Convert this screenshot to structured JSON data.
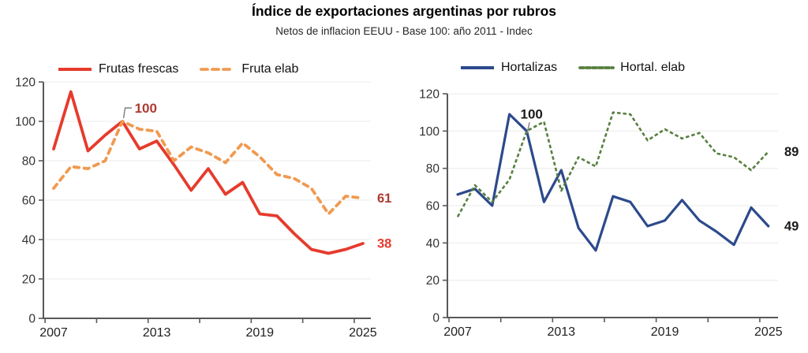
{
  "header": {
    "title": "Índice de exportaciones argentinas por rubros",
    "subtitle": "Netos de inflacion EEUU - Base 100: año 2011 - Indec"
  },
  "axis_style": {
    "axis_color": "#595959",
    "grid_color": "#efefef",
    "tick_label_color": "#333333",
    "x_label_color": "#1f1f1f"
  },
  "chart_data": [
    {
      "type": "line",
      "panel": "frutas",
      "x": [
        2007,
        2008,
        2009,
        2010,
        2011,
        2012,
        2013,
        2014,
        2015,
        2016,
        2017,
        2018,
        2019,
        2020,
        2021,
        2022,
        2023,
        2024,
        2025
      ],
      "x_tick_labels": [
        "2007",
        "2013",
        "2019",
        "2025"
      ],
      "x_tick_years": [
        2007,
        2013,
        2019,
        2025
      ],
      "ylim": [
        0,
        120
      ],
      "y_ticks": [
        0,
        20,
        40,
        60,
        80,
        100,
        120
      ],
      "grid": true,
      "legend_position": "top",
      "series": [
        {
          "name": "Frutas frescas",
          "style": "solid",
          "color": "#e63b2c",
          "values": [
            86,
            115,
            85,
            93,
            100,
            86,
            90,
            78,
            65,
            76,
            63,
            69,
            53,
            52,
            43,
            35,
            33,
            35,
            38
          ]
        },
        {
          "name": "Fruta elab",
          "style": "dashed",
          "color": "#f09a50",
          "values": [
            66,
            77,
            76,
            80,
            100,
            96,
            95,
            80,
            87,
            84,
            79,
            89,
            82,
            73,
            71,
            66,
            53,
            62,
            61
          ]
        }
      ],
      "annotations": {
        "peak": {
          "text": "100",
          "year": 2011,
          "value": 100,
          "variant": "elbow",
          "color": "#ae3b33",
          "leader_color": "#7f7f7f"
        },
        "end_labels": [
          {
            "text": "61",
            "value": 61,
            "color": "#ae3b33"
          },
          {
            "text": "38",
            "value": 38,
            "color": "#e63b2c"
          }
        ]
      }
    },
    {
      "type": "line",
      "panel": "hortalizas",
      "x": [
        2007,
        2008,
        2009,
        2010,
        2011,
        2012,
        2013,
        2014,
        2015,
        2016,
        2017,
        2018,
        2019,
        2020,
        2021,
        2022,
        2023,
        2024,
        2025
      ],
      "x_tick_labels": [
        "2007",
        "2013",
        "2019",
        "2025"
      ],
      "x_tick_years": [
        2007,
        2013,
        2019,
        2025
      ],
      "ylim": [
        0,
        120
      ],
      "y_ticks": [
        0,
        20,
        40,
        60,
        80,
        100,
        120
      ],
      "grid": true,
      "legend_position": "top",
      "series": [
        {
          "name": "Hortalizas",
          "style": "solid",
          "color": "#2c4a8c",
          "values": [
            66,
            69,
            60,
            109,
            100,
            62,
            79,
            48,
            36,
            65,
            62,
            49,
            52,
            63,
            52,
            46,
            39,
            59,
            49
          ]
        },
        {
          "name": "Hortal. elab",
          "style": "dashed",
          "color": "#567f3f",
          "values": [
            54,
            71,
            62,
            74,
            100,
            105,
            68,
            86,
            81,
            110,
            109,
            95,
            101,
            96,
            99,
            88,
            86,
            79,
            89
          ]
        }
      ],
      "annotations": {
        "peak": {
          "text": "100",
          "year": 2011,
          "value": 100,
          "variant": "tick",
          "color": "#1a1a1a",
          "leader_color": "#7f7f7f"
        },
        "end_labels": [
          {
            "text": "89",
            "value": 89,
            "color": "#1a1a1a"
          },
          {
            "text": "49",
            "value": 49,
            "color": "#1a1a1a"
          }
        ]
      }
    }
  ]
}
